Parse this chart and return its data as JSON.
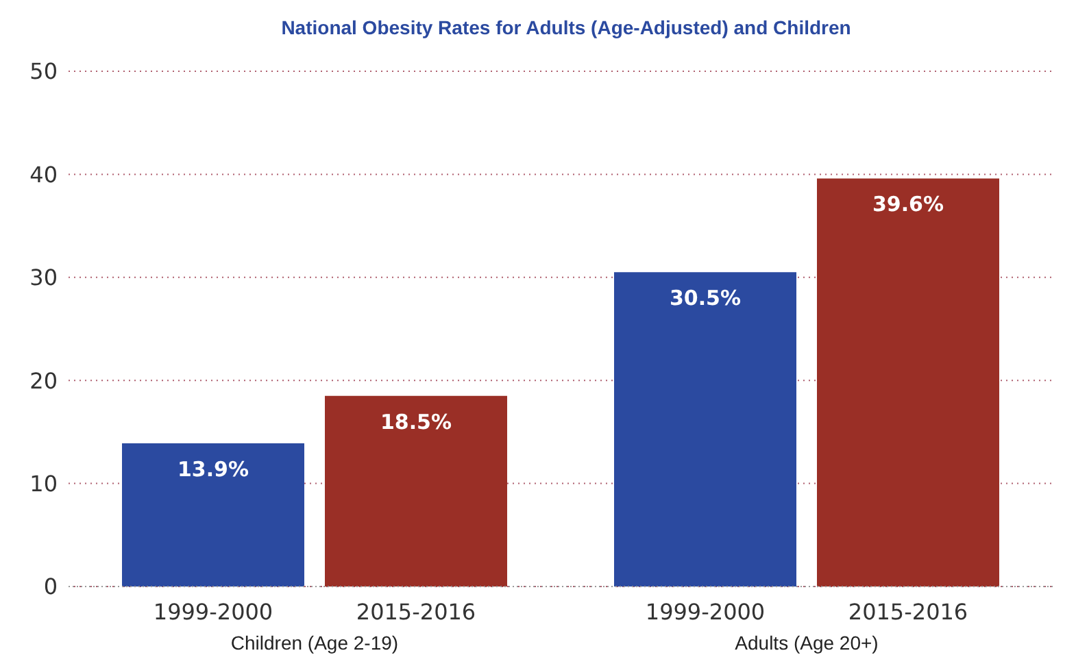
{
  "chart_data": {
    "type": "bar",
    "title": "National Obesity Rates for Adults (Age-Adjusted) and Children",
    "categories": [
      "Children (Age 2-19)",
      "Adults (Age 20+)"
    ],
    "series": [
      {
        "name": "1999-2000",
        "color": "#2b4aa0",
        "values": [
          13.9,
          30.5
        ],
        "value_labels": [
          "13.9%",
          "30.5%"
        ]
      },
      {
        "name": "2015-2016",
        "color": "#9a2f26",
        "values": [
          18.5,
          39.6
        ],
        "value_labels": [
          "18.5%",
          "39.6%"
        ]
      }
    ],
    "ylim": [
      0,
      50
    ],
    "yticks": [
      0,
      10,
      20,
      30,
      40,
      50
    ],
    "grid": "y",
    "legend": false
  }
}
